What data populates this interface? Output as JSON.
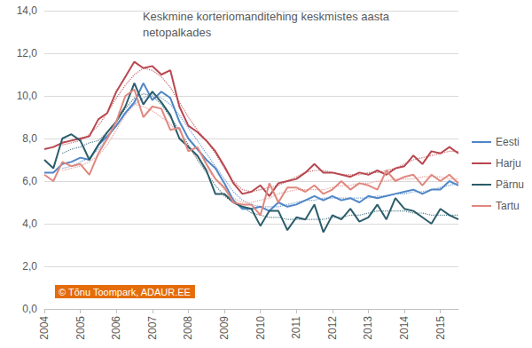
{
  "chart_data": {
    "type": "line",
    "title": "Keskmine korteriomanditehing keskmistes aasta\nnetopalkades",
    "annotation": "© Tõnu Toompark, ADAUR.EE",
    "categories": [
      "2004",
      null,
      null,
      null,
      "2005",
      null,
      null,
      null,
      "2006",
      null,
      null,
      null,
      "2007",
      null,
      null,
      null,
      "2008",
      null,
      null,
      null,
      "2009",
      null,
      null,
      null,
      "2010",
      null,
      null,
      null,
      "2011",
      null,
      null,
      null,
      "2012",
      null,
      null,
      null,
      "2013",
      null,
      null,
      null,
      "2014",
      null,
      null,
      null,
      "2015",
      null,
      null
    ],
    "series": [
      {
        "name": "Eesti",
        "color": "#4f86c6",
        "line_style": "solid",
        "values": [
          6.4,
          6.4,
          6.8,
          6.9,
          7.1,
          7.0,
          7.7,
          8.1,
          8.6,
          9.2,
          9.7,
          10.6,
          9.8,
          10.2,
          9.9,
          8.8,
          8.0,
          7.5,
          7.0,
          6.6,
          5.9,
          5.1,
          4.7,
          4.7,
          4.8,
          4.6,
          5.0,
          4.8,
          4.9,
          5.1,
          5.3,
          5.1,
          5.3,
          5.1,
          5.2,
          5.0,
          5.3,
          5.2,
          5.3,
          5.4,
          5.5,
          5.6,
          5.4,
          5.6,
          5.6,
          6.0,
          5.8
        ]
      },
      {
        "name": "Harju",
        "color": "#b8474f",
        "line_style": "solid",
        "values": [
          7.5,
          7.6,
          7.8,
          7.9,
          8.0,
          8.1,
          8.9,
          9.2,
          10.2,
          10.9,
          11.6,
          11.3,
          11.4,
          11.0,
          11.2,
          9.5,
          8.6,
          8.3,
          7.9,
          7.4,
          6.7,
          5.9,
          5.4,
          5.5,
          5.8,
          5.3,
          5.9,
          6.0,
          6.1,
          6.4,
          6.8,
          6.4,
          6.4,
          6.3,
          6.2,
          6.4,
          6.3,
          6.5,
          6.3,
          6.6,
          6.7,
          7.2,
          6.8,
          7.4,
          7.3,
          7.6,
          7.3
        ]
      },
      {
        "name": "Pärnu",
        "color": "#2b5d6b",
        "line_style": "solid",
        "values": [
          7.0,
          6.6,
          8.0,
          8.2,
          7.9,
          7.0,
          7.7,
          8.3,
          8.8,
          9.5,
          10.6,
          9.6,
          10.2,
          9.7,
          9.1,
          8.0,
          7.6,
          7.2,
          6.5,
          5.4,
          5.4,
          5.0,
          4.8,
          4.7,
          3.9,
          4.6,
          4.6,
          3.7,
          4.3,
          4.2,
          4.9,
          3.6,
          4.4,
          4.2,
          4.7,
          4.1,
          4.3,
          4.9,
          4.2,
          5.2,
          4.7,
          4.6,
          4.3,
          4.0,
          4.7,
          4.4,
          4.2
        ]
      },
      {
        "name": "Tartu",
        "color": "#e0877f",
        "line_style": "solid",
        "values": [
          6.3,
          6.0,
          6.9,
          6.7,
          6.8,
          6.3,
          7.3,
          8.0,
          8.8,
          10.0,
          10.3,
          9.0,
          9.5,
          9.4,
          8.4,
          8.5,
          7.4,
          7.6,
          6.8,
          6.1,
          5.7,
          5.0,
          4.9,
          4.9,
          4.4,
          5.9,
          5.0,
          5.7,
          5.7,
          5.5,
          5.8,
          5.4,
          5.6,
          6.0,
          5.6,
          5.9,
          5.8,
          5.6,
          6.5,
          6.0,
          6.2,
          6.3,
          5.8,
          6.3,
          6.0,
          6.3,
          5.9
        ]
      },
      {
        "color": "#4f86c6",
        "line_style": "dotted",
        "values": [
          null,
          null,
          6.6,
          6.7,
          6.9,
          7.1,
          7.5,
          8.0,
          8.6,
          9.2,
          9.6,
          9.9,
          10.1,
          9.9,
          9.6,
          9.1,
          8.5,
          7.9,
          7.3,
          6.7,
          6.1,
          5.5,
          5.1,
          4.9,
          4.8,
          4.8,
          4.8,
          4.9,
          5.0,
          5.1,
          5.1,
          5.2,
          5.2,
          5.2,
          5.2,
          5.2,
          5.2,
          5.3,
          5.3,
          5.4,
          5.4,
          5.5,
          5.5,
          5.6,
          5.7,
          5.8,
          5.9
        ]
      },
      {
        "color": "#b8474f",
        "line_style": "dotted",
        "values": [
          null,
          null,
          7.7,
          7.8,
          7.9,
          8.2,
          8.6,
          9.2,
          9.9,
          10.5,
          11.0,
          11.3,
          11.2,
          10.9,
          10.4,
          9.7,
          9.0,
          8.4,
          7.9,
          7.3,
          6.6,
          6.0,
          5.6,
          5.5,
          5.6,
          5.7,
          5.8,
          6.0,
          6.2,
          6.4,
          6.5,
          6.5,
          6.4,
          6.3,
          6.3,
          6.3,
          6.4,
          6.4,
          6.5,
          6.6,
          6.8,
          7.0,
          7.1,
          7.2,
          7.3,
          7.4,
          7.4
        ]
      },
      {
        "color": "#2b5d6b",
        "line_style": "dotted",
        "values": [
          null,
          null,
          7.3,
          7.5,
          7.6,
          7.8,
          7.9,
          8.3,
          8.8,
          9.4,
          9.9,
          10.1,
          10.0,
          9.6,
          9.0,
          8.4,
          7.7,
          7.0,
          6.4,
          5.8,
          5.3,
          5.0,
          4.8,
          4.5,
          4.4,
          4.3,
          4.3,
          4.2,
          4.2,
          4.2,
          4.2,
          4.2,
          4.3,
          4.3,
          4.4,
          4.4,
          4.5,
          4.6,
          4.6,
          4.6,
          4.6,
          4.5,
          4.5,
          4.4,
          4.4,
          4.4,
          4.4
        ]
      },
      {
        "color": "#e0877f",
        "line_style": "dotted",
        "values": [
          null,
          null,
          6.5,
          6.6,
          6.7,
          6.9,
          7.2,
          7.7,
          8.4,
          9.1,
          9.6,
          9.5,
          9.3,
          9.0,
          8.7,
          8.1,
          7.6,
          7.1,
          6.6,
          6.1,
          5.6,
          5.2,
          5.0,
          5.0,
          5.1,
          5.2,
          5.4,
          5.5,
          5.6,
          5.6,
          5.6,
          5.6,
          5.7,
          5.8,
          5.8,
          5.9,
          5.9,
          6.0,
          6.0,
          6.1,
          6.1,
          6.1,
          6.2,
          6.2,
          6.2,
          6.1,
          6.1
        ]
      }
    ],
    "ylim": [
      0,
      14
    ],
    "yticks": [
      {
        "value": 0,
        "label": "0,0"
      },
      {
        "value": 2,
        "label": "2,0"
      },
      {
        "value": 4,
        "label": "4,0"
      },
      {
        "value": 6,
        "label": "6,0"
      },
      {
        "value": 8,
        "label": "8,0"
      },
      {
        "value": 10,
        "label": "10,0"
      },
      {
        "value": 12,
        "label": "12,0"
      },
      {
        "value": 14,
        "label": "14,0"
      }
    ],
    "grid": true,
    "legend": "right"
  }
}
